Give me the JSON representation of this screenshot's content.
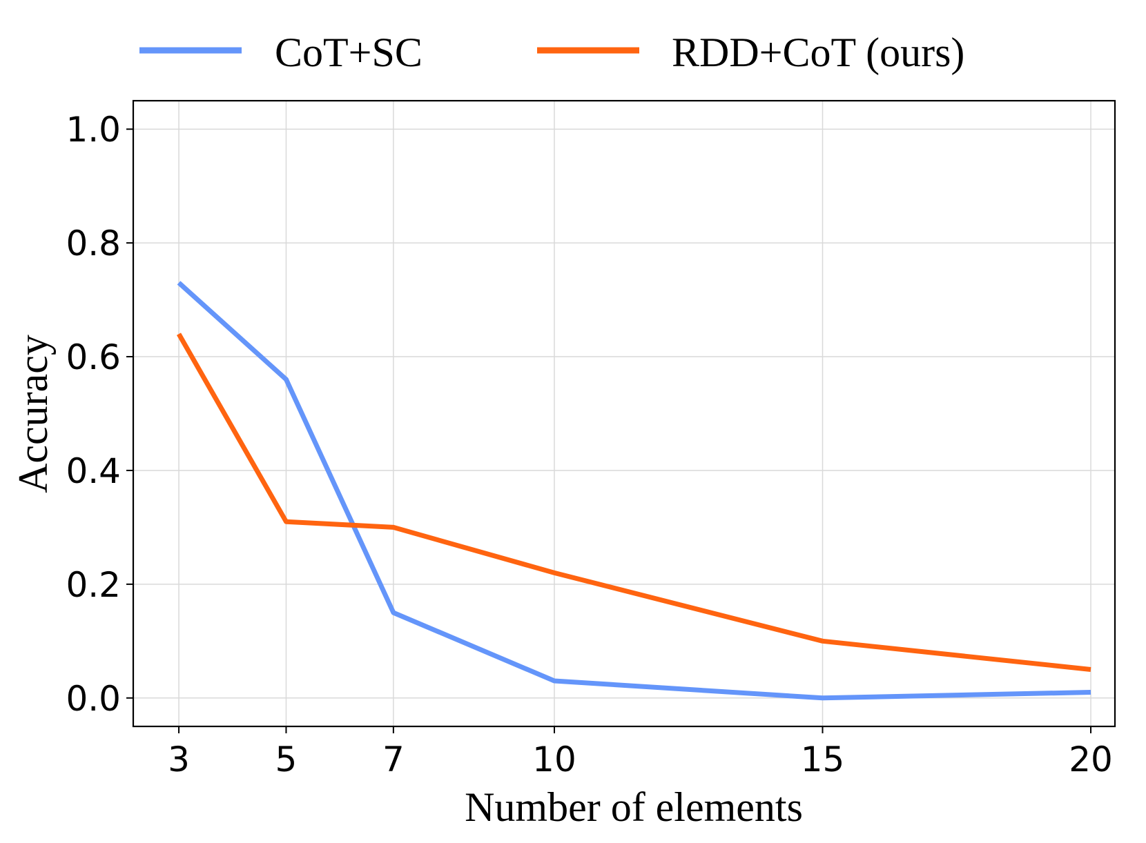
{
  "chart_data": {
    "type": "line",
    "title": "",
    "xlabel": "Number of elements",
    "ylabel": "Accuracy",
    "x": [
      3,
      5,
      7,
      10,
      15,
      20
    ],
    "x_tick_labels": [
      "3",
      "5",
      "7",
      "10",
      "15",
      "20"
    ],
    "xlim": [
      2.15,
      20.45
    ],
    "ylim": [
      -0.05,
      1.05
    ],
    "y_ticks": [
      0.0,
      0.2,
      0.4,
      0.6,
      0.8,
      1.0
    ],
    "y_tick_labels": [
      "0.0",
      "0.2",
      "0.4",
      "0.6",
      "0.8",
      "1.0"
    ],
    "grid": true,
    "legend_position": "top-center",
    "series": [
      {
        "name": "CoT+SC",
        "color": "#6495fa",
        "values": [
          0.73,
          0.56,
          0.15,
          0.03,
          0.0,
          0.01
        ]
      },
      {
        "name": "RDD+CoT (ours)",
        "color": "#ff6410",
        "values": [
          0.64,
          0.31,
          0.3,
          0.22,
          0.1,
          0.05
        ]
      }
    ]
  }
}
